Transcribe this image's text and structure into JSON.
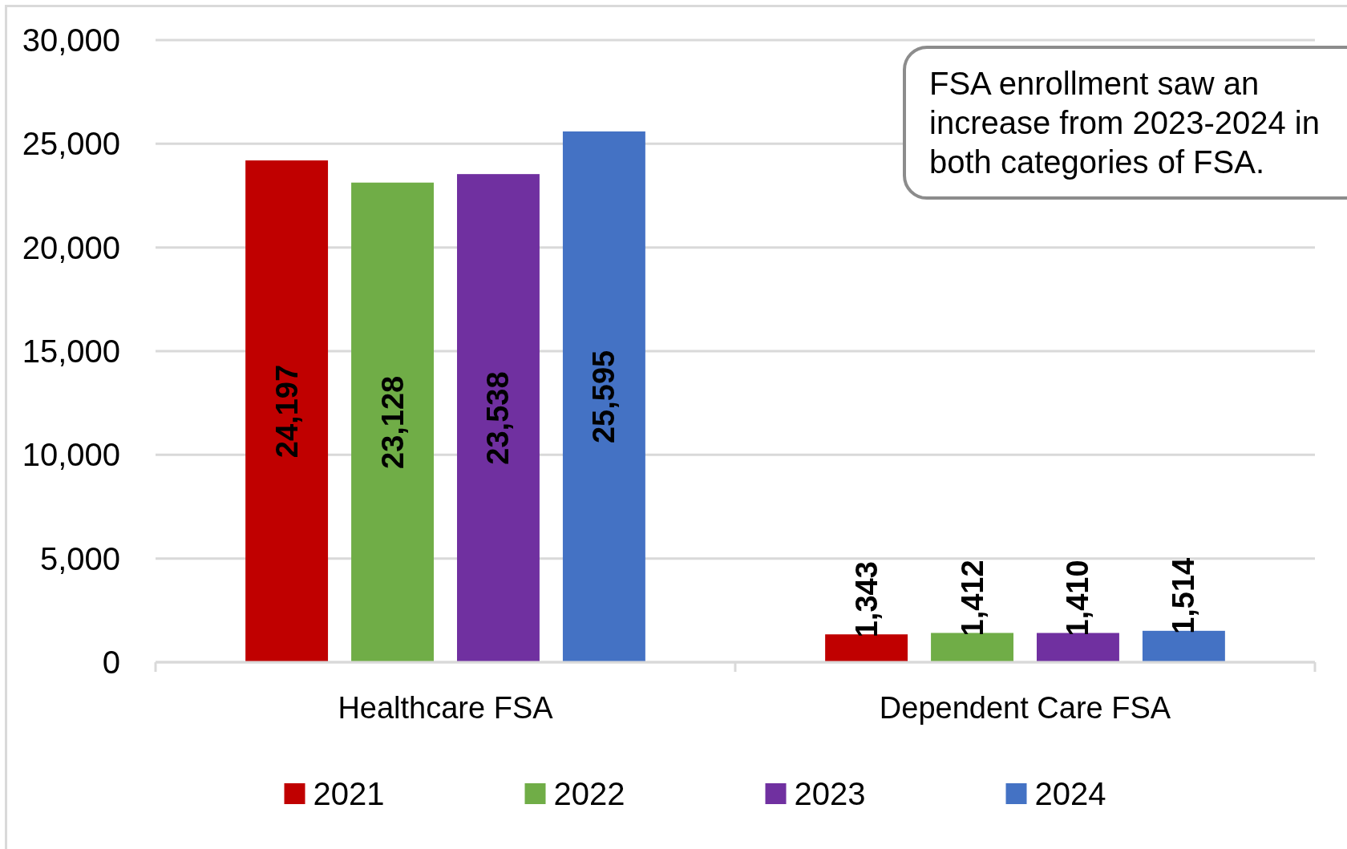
{
  "chart_data": {
    "type": "bar",
    "categories": [
      "Healthcare FSA",
      "Dependent Care FSA"
    ],
    "series": [
      {
        "name": "2021",
        "color": "#c00000",
        "values": [
          24197,
          1343
        ],
        "value_labels": [
          "24,197",
          "1,343"
        ]
      },
      {
        "name": "2022",
        "color": "#70ad47",
        "values": [
          23128,
          1412
        ],
        "value_labels": [
          "23,128",
          "1,412"
        ]
      },
      {
        "name": "2023",
        "color": "#7030a0",
        "values": [
          23538,
          1410
        ],
        "value_labels": [
          "23,538",
          "1,410"
        ]
      },
      {
        "name": "2024",
        "color": "#4472c4",
        "values": [
          25595,
          1514
        ],
        "value_labels": [
          "25,595",
          "1,514"
        ]
      }
    ],
    "ylim": [
      0,
      30000
    ],
    "yticks": [
      0,
      {
        "value": 5000,
        "label": "5,000"
      },
      {
        "value": 10000,
        "label": "10,000"
      },
      {
        "value": 15000,
        "label": "15,000"
      },
      {
        "value": 20000,
        "label": "20,000"
      },
      {
        "value": 25000,
        "label": "25,000"
      },
      {
        "value": 30000,
        "label": "30,000"
      }
    ],
    "grid": "y",
    "legend": "bottom",
    "annotations": [
      "FSA enrollment saw an increase from 2023-2024 in both categories of FSA."
    ]
  }
}
